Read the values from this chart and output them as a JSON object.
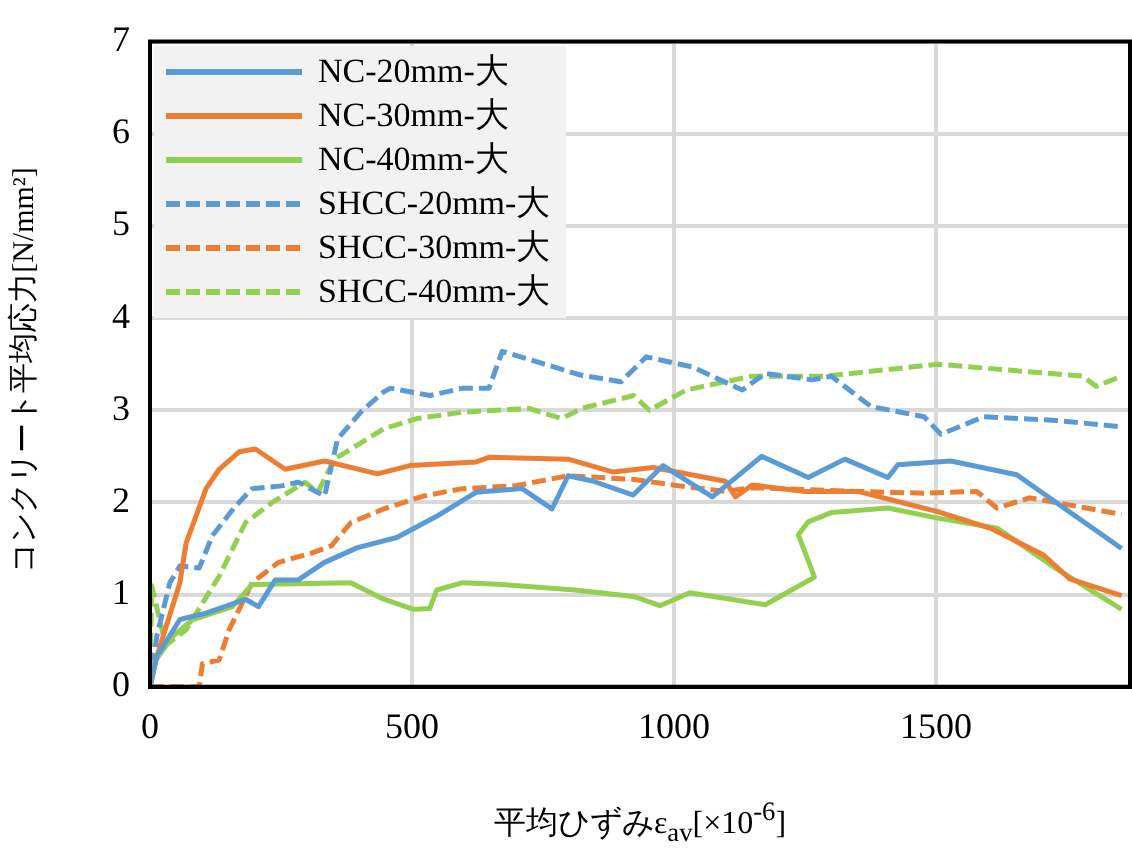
{
  "chart_data": {
    "type": "line",
    "xlabel": "平均ひずみε$_{av}$[×10$^{-6}$]",
    "ylabel": "コンクリート平均応力[N/mm²]",
    "xlim": [
      0,
      1870
    ],
    "ylim": [
      0,
      7
    ],
    "xticks": [
      0,
      500,
      1000,
      1500
    ],
    "yticks": [
      0,
      1,
      2,
      3,
      4,
      5,
      6,
      7
    ],
    "grid": true,
    "legend": "top left",
    "marker": "none",
    "series": [
      {
        "name": "NC-20mm-大",
        "color": "#5b9bd5",
        "line_style": "solid",
        "x": [
          0,
          13,
          57,
          107,
          182,
          207,
          239,
          283,
          333,
          396,
          471,
          547,
          622,
          710,
          767,
          798,
          846,
          922,
          979,
          1073,
          1167,
          1256,
          1326,
          1408,
          1427,
          1528,
          1654,
          1854
        ],
        "values": [
          0,
          0.33,
          0.73,
          0.8,
          0.95,
          0.87,
          1.16,
          1.16,
          1.35,
          1.51,
          1.62,
          1.85,
          2.11,
          2.15,
          1.93,
          2.29,
          2.23,
          2.08,
          2.4,
          2.06,
          2.5,
          2.27,
          2.47,
          2.27,
          2.41,
          2.45,
          2.3,
          1.5
        ]
      },
      {
        "name": "NC-30mm-大",
        "color": "#ed7d31",
        "line_style": "solid",
        "x": [
          0,
          13,
          57,
          69,
          107,
          132,
          170,
          201,
          258,
          333,
          434,
          496,
          622,
          647,
          798,
          884,
          960,
          1098,
          1117,
          1149,
          1250,
          1351,
          1503,
          1604,
          1705,
          1755,
          1854
        ],
        "values": [
          0,
          0.33,
          1.13,
          1.56,
          2.15,
          2.36,
          2.55,
          2.58,
          2.36,
          2.45,
          2.31,
          2.4,
          2.44,
          2.49,
          2.47,
          2.33,
          2.38,
          2.23,
          2.06,
          2.19,
          2.12,
          2.12,
          1.9,
          1.72,
          1.43,
          1.17,
          0.99
        ]
      },
      {
        "name": "NC-40mm-大",
        "color": "#92d050",
        "line_style": "solid",
        "x": [
          0,
          6,
          44,
          82,
          157,
          195,
          383,
          446,
          503,
          534,
          547,
          597,
          672,
          811,
          923,
          973,
          1030,
          1174,
          1268,
          1237,
          1256,
          1300,
          1408,
          1503,
          1617,
          1730,
          1854
        ],
        "values": [
          0,
          0.25,
          0.55,
          0.73,
          0.87,
          1.11,
          1.13,
          0.95,
          0.84,
          0.85,
          1.05,
          1.13,
          1.11,
          1.05,
          0.98,
          0.88,
          1.02,
          0.89,
          1.19,
          1.65,
          1.79,
          1.89,
          1.94,
          1.83,
          1.72,
          1.28,
          0.84
        ]
      },
      {
        "name": "SHCC-20mm-大",
        "color": "#5b9bd5",
        "line_style": "dashed",
        "x": [
          0,
          13,
          38,
          57,
          94,
          119,
          163,
          195,
          251,
          283,
          333,
          358,
          402,
          446,
          459,
          534,
          597,
          647,
          672,
          823,
          899,
          947,
          1035,
          1130,
          1174,
          1263,
          1300,
          1376,
          1477,
          1509,
          1591,
          1730,
          1854
        ],
        "values": [
          0,
          0.55,
          1.13,
          1.31,
          1.29,
          1.64,
          1.96,
          2.15,
          2.18,
          2.22,
          2.07,
          2.69,
          2.98,
          3.2,
          3.24,
          3.16,
          3.24,
          3.24,
          3.64,
          3.38,
          3.31,
          3.58,
          3.47,
          3.22,
          3.4,
          3.33,
          3.37,
          3.04,
          2.93,
          2.74,
          2.93,
          2.89,
          2.82
        ]
      },
      {
        "name": "SHCC-30mm-大",
        "color": "#ed7d31",
        "line_style": "dashed",
        "x": [
          0,
          94,
          100,
          132,
          151,
          170,
          195,
          245,
          308,
          346,
          383,
          446,
          522,
          597,
          697,
          798,
          923,
          1010,
          1098,
          1149,
          1351,
          1477,
          1578,
          1616,
          1679,
          1854
        ],
        "values": [
          0,
          0,
          0.25,
          0.29,
          0.62,
          0.84,
          1.13,
          1.35,
          1.45,
          1.53,
          1.78,
          1.93,
          2.07,
          2.15,
          2.18,
          2.29,
          2.25,
          2.18,
          2.12,
          2.16,
          2.12,
          2.1,
          2.12,
          1.94,
          2.05,
          1.87
        ]
      },
      {
        "name": "SHCC-40mm-大",
        "color": "#92d050",
        "line_style": "dashed",
        "x": [
          0,
          3,
          30,
          69,
          132,
          182,
          233,
          296,
          320,
          352,
          446,
          509,
          597,
          723,
          786,
          823,
          923,
          953,
          1023,
          1149,
          1288,
          1503,
          1780,
          1805,
          1854
        ],
        "values": [
          0,
          1.1,
          0.45,
          0.62,
          1.2,
          1.78,
          2.0,
          2.22,
          2.11,
          2.47,
          2.8,
          2.91,
          2.98,
          3.02,
          2.91,
          3.02,
          3.16,
          3.0,
          3.22,
          3.37,
          3.37,
          3.5,
          3.37,
          3.26,
          3.37
        ]
      }
    ]
  }
}
